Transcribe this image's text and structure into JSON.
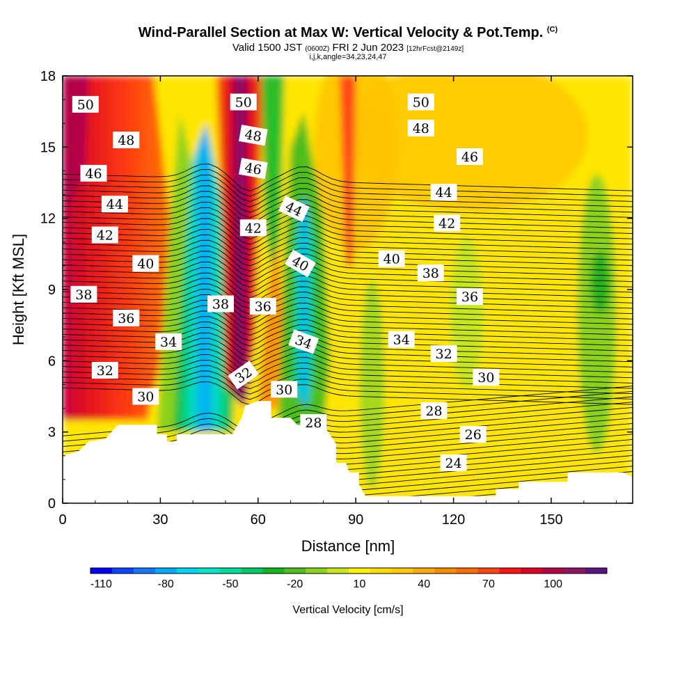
{
  "title": {
    "main": "Wind-Parallel Section at Max W: Vertical Velocity & Pot.Temp.",
    "copyright": "(C)",
    "valid_prefix": "Valid 1500 JST",
    "valid_utc": "(0600Z)",
    "valid_date": "FRI 2 Jun 2023",
    "forecast": "[12hrFcst@2149z]",
    "params": "i,j,k,angle=34,23,24,47"
  },
  "chart_data": {
    "type": "heatmap",
    "xlabel": "Distance [nm]",
    "ylabel": "Height [Kft MSL]",
    "xlim": [
      0,
      175
    ],
    "ylim": [
      0,
      18
    ],
    "x_ticks": [
      0,
      30,
      60,
      90,
      120,
      150
    ],
    "y_ticks": [
      0,
      3,
      6,
      9,
      12,
      15,
      18
    ],
    "colorbar": {
      "label": "Vertical Velocity [cm/s]",
      "tick_labels": [
        -110,
        -80,
        -50,
        -20,
        10,
        40,
        70,
        100
      ],
      "colors": [
        "#0000ff",
        "#0a46ff",
        "#1478ff",
        "#00aaff",
        "#00d2f0",
        "#00e6c8",
        "#00dca0",
        "#00c864",
        "#14b41e",
        "#50be1e",
        "#8cd21e",
        "#c8e61e",
        "#fff000",
        "#ffdc00",
        "#ffc800",
        "#ffaa00",
        "#ff8c00",
        "#ff6e00",
        "#ff4614",
        "#ff1414",
        "#dc0028",
        "#b40046",
        "#8c1464",
        "#5a147d"
      ]
    },
    "theta_contours": [
      {
        "label": "50",
        "x": 7,
        "y": 16.8
      },
      {
        "label": "48",
        "x": 19.5,
        "y": 15.3
      },
      {
        "label": "46",
        "x": 9.5,
        "y": 13.9
      },
      {
        "label": "44",
        "x": 16,
        "y": 12.6
      },
      {
        "label": "42",
        "x": 13,
        "y": 11.3
      },
      {
        "label": "40",
        "x": 25.5,
        "y": 10.1
      },
      {
        "label": "38",
        "x": 6.5,
        "y": 8.8
      },
      {
        "label": "36",
        "x": 19.5,
        "y": 7.8
      },
      {
        "label": "34",
        "x": 32.5,
        "y": 6.8
      },
      {
        "label": "32",
        "x": 13,
        "y": 5.6
      },
      {
        "label": "30",
        "x": 25.5,
        "y": 4.5
      },
      {
        "label": "50",
        "x": 55.5,
        "y": 16.9
      },
      {
        "label": "48",
        "x": 58.5,
        "y": 15.5
      },
      {
        "label": "46",
        "x": 58.5,
        "y": 14.1
      },
      {
        "label": "42",
        "x": 58.5,
        "y": 11.6
      },
      {
        "label": "38",
        "x": 48.5,
        "y": 8.4
      },
      {
        "label": "36",
        "x": 61.5,
        "y": 8.3
      },
      {
        "label": "32",
        "x": 55.5,
        "y": 5.4
      },
      {
        "label": "44",
        "x": 71,
        "y": 12.4
      },
      {
        "label": "40",
        "x": 73,
        "y": 10.1
      },
      {
        "label": "34",
        "x": 74,
        "y": 6.8
      },
      {
        "label": "30",
        "x": 68,
        "y": 4.8
      },
      {
        "label": "28",
        "x": 77,
        "y": 3.4
      },
      {
        "label": "50",
        "x": 110,
        "y": 16.9
      },
      {
        "label": "48",
        "x": 110,
        "y": 15.8
      },
      {
        "label": "46",
        "x": 125,
        "y": 14.6
      },
      {
        "label": "44",
        "x": 117,
        "y": 13.1
      },
      {
        "label": "42",
        "x": 118,
        "y": 11.8
      },
      {
        "label": "40",
        "x": 101,
        "y": 10.3
      },
      {
        "label": "38",
        "x": 113,
        "y": 9.7
      },
      {
        "label": "36",
        "x": 125,
        "y": 8.7
      },
      {
        "label": "34",
        "x": 104,
        "y": 6.9
      },
      {
        "label": "32",
        "x": 117,
        "y": 6.3
      },
      {
        "label": "30",
        "x": 130,
        "y": 5.3
      },
      {
        "label": "28",
        "x": 114,
        "y": 3.9
      },
      {
        "label": "26",
        "x": 126,
        "y": 2.9
      },
      {
        "label": "24",
        "x": 120,
        "y": 1.7
      }
    ]
  }
}
